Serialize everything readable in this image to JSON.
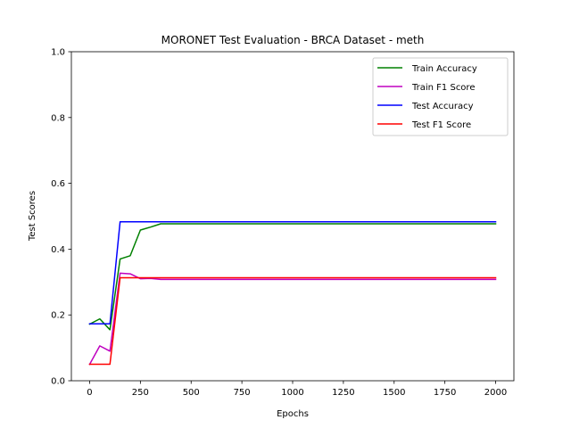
{
  "chart_data": {
    "type": "line",
    "title": "MORONET Test Evaluation - BRCA Dataset - meth",
    "xlabel": "Epochs",
    "ylabel": "Test Scores",
    "xlim": [
      -90,
      2090
    ],
    "ylim": [
      0,
      1.0
    ],
    "xticks": [
      0,
      250,
      500,
      750,
      1000,
      1250,
      1500,
      1750,
      2000
    ],
    "xtick_labels": [
      "0",
      "250",
      "500",
      "750",
      "1000",
      "1250",
      "1500",
      "1750",
      "2000"
    ],
    "yticks": [
      0.0,
      0.2,
      0.4,
      0.6,
      0.8,
      1.0
    ],
    "ytick_labels": [
      "0.0",
      "0.2",
      "0.4",
      "0.6",
      "0.8",
      "1.0"
    ],
    "grid": false,
    "legend_position": "top-right",
    "series": [
      {
        "name": "Train Accuracy",
        "color": "#008000",
        "x": [
          0,
          50,
          100,
          150,
          200,
          250,
          300,
          350,
          400,
          2000
        ],
        "y": [
          0.172,
          0.188,
          0.155,
          0.37,
          0.38,
          0.458,
          0.467,
          0.477,
          0.477,
          0.477
        ]
      },
      {
        "name": "Train F1 Score",
        "color": "#bf00bf",
        "x": [
          0,
          50,
          100,
          150,
          200,
          250,
          300,
          350,
          400,
          2000
        ],
        "y": [
          0.05,
          0.106,
          0.09,
          0.327,
          0.325,
          0.31,
          0.311,
          0.308,
          0.308,
          0.308
        ]
      },
      {
        "name": "Test Accuracy",
        "color": "#0000ff",
        "x": [
          0,
          50,
          100,
          150,
          200,
          2000
        ],
        "y": [
          0.173,
          0.173,
          0.173,
          0.483,
          0.483,
          0.483
        ]
      },
      {
        "name": "Test F1 Score",
        "color": "#ff0000",
        "x": [
          0,
          50,
          100,
          150,
          200,
          2000
        ],
        "y": [
          0.05,
          0.05,
          0.05,
          0.313,
          0.313,
          0.313
        ]
      }
    ]
  }
}
